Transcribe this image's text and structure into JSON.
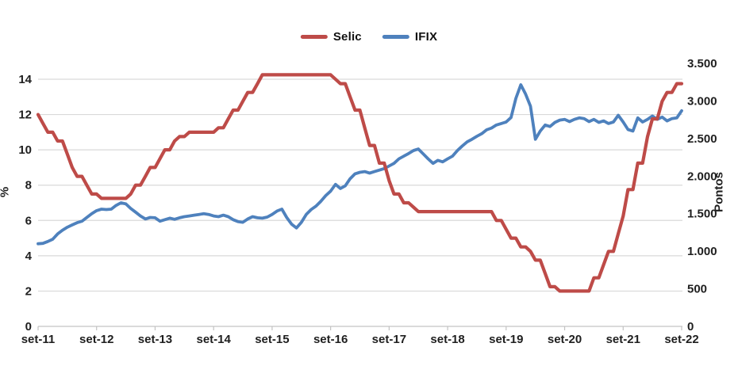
{
  "chart_data": {
    "type": "line",
    "title": "",
    "x_frequency": "monthly",
    "x_range": [
      "set-11",
      "set-22"
    ],
    "x_tick_labels": [
      "set-11",
      "set-12",
      "set-13",
      "set-14",
      "set-15",
      "set-16",
      "set-17",
      "set-18",
      "set-19",
      "set-20",
      "set-21",
      "set-22"
    ],
    "left_axis": {
      "label": "%",
      "range": [
        0,
        14
      ],
      "tick_values": [
        0,
        2,
        4,
        6,
        8,
        10,
        12,
        14
      ],
      "tick_labels": [
        "0",
        "2",
        "4",
        "6",
        "8",
        "10",
        "12",
        "14"
      ]
    },
    "right_axis": {
      "label": "Pontos",
      "range": [
        0,
        3500
      ],
      "tick_values": [
        0,
        500,
        1000,
        1500,
        2000,
        2500,
        3000,
        3500
      ],
      "tick_labels": [
        "0",
        "500",
        "1.000",
        "1.500",
        "2.000",
        "2.500",
        "3.000",
        "3.500"
      ]
    },
    "grid": "horizontal",
    "legend_position": "top-center",
    "colors": {
      "selic": "#BE4B48",
      "ifix": "#4E81BD",
      "gridline": "#d9d9d9",
      "axisline": "#c3c3c3",
      "text": "#1f1f1f"
    },
    "series": [
      {
        "name": "Selic",
        "axis": "left",
        "color_key": "selic",
        "values": [
          12.0,
          11.5,
          11.0,
          11.0,
          10.5,
          10.5,
          9.75,
          9.0,
          8.5,
          8.5,
          8.0,
          7.5,
          7.5,
          7.25,
          7.25,
          7.25,
          7.25,
          7.25,
          7.25,
          7.5,
          8.0,
          8.0,
          8.5,
          9.0,
          9.0,
          9.5,
          10.0,
          10.0,
          10.5,
          10.75,
          10.75,
          11.0,
          11.0,
          11.0,
          11.0,
          11.0,
          11.0,
          11.25,
          11.25,
          11.75,
          12.25,
          12.25,
          12.75,
          13.25,
          13.25,
          13.75,
          14.25,
          14.25,
          14.25,
          14.25,
          14.25,
          14.25,
          14.25,
          14.25,
          14.25,
          14.25,
          14.25,
          14.25,
          14.25,
          14.25,
          14.25,
          14.0,
          13.75,
          13.75,
          13.0,
          12.25,
          12.25,
          11.25,
          10.25,
          10.25,
          9.25,
          9.25,
          8.25,
          7.5,
          7.5,
          7.0,
          7.0,
          6.75,
          6.5,
          6.5,
          6.5,
          6.5,
          6.5,
          6.5,
          6.5,
          6.5,
          6.5,
          6.5,
          6.5,
          6.5,
          6.5,
          6.5,
          6.5,
          6.5,
          6.0,
          6.0,
          5.5,
          5.0,
          5.0,
          4.5,
          4.5,
          4.25,
          3.75,
          3.75,
          3.0,
          2.25,
          2.25,
          2.0,
          2.0,
          2.0,
          2.0,
          2.0,
          2.0,
          2.0,
          2.75,
          2.75,
          3.5,
          4.25,
          4.25,
          5.25,
          6.25,
          7.75,
          7.75,
          9.25,
          9.25,
          10.75,
          11.75,
          11.75,
          12.75,
          13.25,
          13.25,
          13.75,
          13.75
        ]
      },
      {
        "name": "IFIX",
        "axis": "right",
        "color_key": "ifix",
        "values": [
          1100,
          1105,
          1130,
          1160,
          1230,
          1280,
          1320,
          1350,
          1380,
          1400,
          1450,
          1500,
          1540,
          1560,
          1555,
          1560,
          1610,
          1645,
          1630,
          1570,
          1520,
          1470,
          1430,
          1450,
          1445,
          1400,
          1420,
          1440,
          1425,
          1445,
          1460,
          1470,
          1480,
          1490,
          1500,
          1490,
          1470,
          1460,
          1480,
          1460,
          1420,
          1395,
          1385,
          1430,
          1460,
          1445,
          1440,
          1455,
          1490,
          1535,
          1560,
          1450,
          1360,
          1310,
          1385,
          1490,
          1555,
          1600,
          1665,
          1740,
          1800,
          1890,
          1835,
          1870,
          1965,
          2030,
          2050,
          2060,
          2040,
          2060,
          2080,
          2100,
          2135,
          2170,
          2230,
          2265,
          2300,
          2340,
          2360,
          2295,
          2230,
          2170,
          2210,
          2190,
          2230,
          2265,
          2340,
          2400,
          2455,
          2490,
          2530,
          2565,
          2615,
          2640,
          2680,
          2700,
          2720,
          2780,
          3035,
          3215,
          3090,
          2930,
          2490,
          2600,
          2680,
          2660,
          2715,
          2745,
          2755,
          2725,
          2755,
          2775,
          2765,
          2725,
          2755,
          2715,
          2735,
          2700,
          2720,
          2810,
          2720,
          2620,
          2600,
          2775,
          2720,
          2755,
          2800,
          2755,
          2785,
          2735,
          2765,
          2775,
          2870
        ]
      }
    ]
  }
}
